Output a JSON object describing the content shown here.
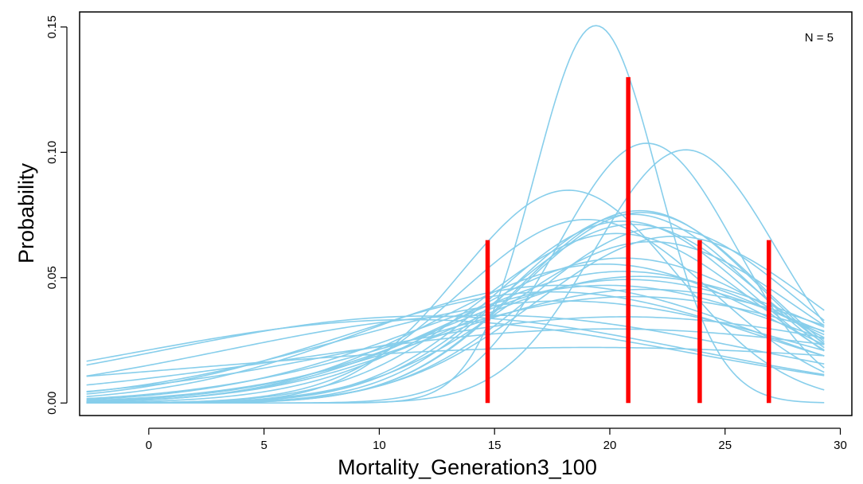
{
  "chart_data": {
    "type": "line",
    "title": "",
    "xlabel": "Mortality_Generation3_100",
    "ylabel": "Probability",
    "xlim": [
      -3,
      30.5
    ],
    "ylim": [
      -0.005,
      0.156
    ],
    "xticks": [
      0,
      5,
      10,
      15,
      20,
      25,
      30
    ],
    "xtick_labels": [
      "0",
      "5",
      "10",
      "15",
      "20",
      "25",
      "30"
    ],
    "yticks": [
      0.0,
      0.05,
      0.1,
      0.15
    ],
    "ytick_labels": [
      "0.00",
      "0.05",
      "0.10",
      "0.15"
    ],
    "grid": false,
    "legend": "none",
    "annotation": "N = 5",
    "curve_color": "#87CEEB",
    "bar_color": "#FF0000",
    "curve_x_range": [
      -2.7,
      29.3
    ],
    "density_curves": [
      {
        "mean": 19.4,
        "sd": 2.65
      },
      {
        "mean": 21.6,
        "sd": 3.85
      },
      {
        "mean": 23.3,
        "sd": 3.95
      },
      {
        "mean": 18.2,
        "sd": 4.7
      },
      {
        "mean": 21.3,
        "sd": 5.2
      },
      {
        "mean": 21.0,
        "sd": 5.3
      },
      {
        "mean": 21.4,
        "sd": 5.25
      },
      {
        "mean": 19.0,
        "sd": 5.45
      },
      {
        "mean": 20.6,
        "sd": 5.5
      },
      {
        "mean": 21.0,
        "sd": 5.6
      },
      {
        "mean": 22.3,
        "sd": 5.7
      },
      {
        "mean": 20.3,
        "sd": 5.9
      },
      {
        "mean": 22.8,
        "sd": 6.0
      },
      {
        "mean": 21.8,
        "sd": 6.2
      },
      {
        "mean": 20.6,
        "sd": 6.9
      },
      {
        "mean": 19.8,
        "sd": 7.2
      },
      {
        "mean": 20.6,
        "sd": 7.6
      },
      {
        "mean": 21.3,
        "sd": 7.9
      },
      {
        "mean": 20.8,
        "sd": 8.1
      },
      {
        "mean": 19.9,
        "sd": 8.5
      },
      {
        "mean": 17.8,
        "sd": 8.5
      },
      {
        "mean": 21.6,
        "sd": 8.8
      },
      {
        "mean": 17.5,
        "sd": 9.0
      },
      {
        "mean": 21.0,
        "sd": 9.4
      },
      {
        "mean": 18.0,
        "sd": 9.8
      },
      {
        "mean": 14.8,
        "sd": 11.4
      },
      {
        "mean": 12.1,
        "sd": 11.5
      },
      {
        "mean": 20.6,
        "sd": 11.6
      },
      {
        "mean": 11.4,
        "sd": 12.0
      },
      {
        "mean": 20.0,
        "sd": 13.5
      },
      {
        "mean": 19.1,
        "sd": 18.0
      }
    ],
    "observations": [
      {
        "x": 14.7,
        "height": 0.065
      },
      {
        "x": 20.8,
        "height": 0.13
      },
      {
        "x": 23.9,
        "height": 0.065
      },
      {
        "x": 26.9,
        "height": 0.065
      }
    ]
  }
}
